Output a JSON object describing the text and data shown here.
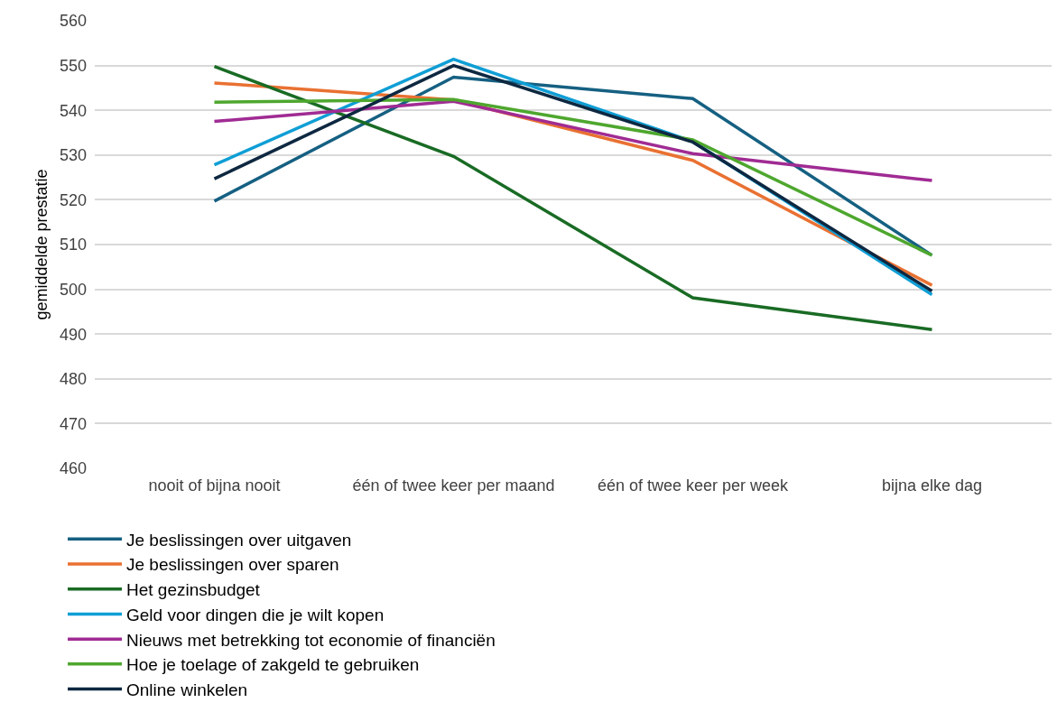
{
  "chart_data": {
    "type": "line",
    "ylabel": "gemiddelde prestatie",
    "categories": [
      "nooit of bijna nooit",
      "één of twee keer per maand",
      "één of twee keer per week",
      "bijna elke dag"
    ],
    "series": [
      {
        "name": "Je beslissingen over uitgaven",
        "color": "#156082",
        "values": [
          519.7,
          547.4,
          542.6,
          507.6
        ]
      },
      {
        "name": "Je beslissingen over sparen",
        "color": "#e97132",
        "values": [
          546.1,
          542.3,
          528.8,
          500.9
        ]
      },
      {
        "name": "Het gezinsbudget",
        "color": "#196b24",
        "values": [
          549.8,
          529.7,
          498.1,
          491.0
        ]
      },
      {
        "name": "Geld voor dingen die je wilt kopen",
        "color": "#0f9ed5",
        "values": [
          527.8,
          551.4,
          533.0,
          498.8
        ]
      },
      {
        "name": "Nieuws met betrekking tot economie of financiën",
        "color": "#a02b93",
        "values": [
          537.5,
          542.0,
          530.3,
          524.3
        ]
      },
      {
        "name": "Hoe je toelage of zakgeld te gebruiken",
        "color": "#4ea72e",
        "values": [
          541.8,
          542.4,
          533.4,
          507.6
        ]
      },
      {
        "name": "Online winkelen",
        "color": "#0e2841",
        "values": [
          524.7,
          550.0,
          532.9,
          499.6
        ]
      }
    ],
    "ylim": [
      460,
      560
    ],
    "yticks": [
      460,
      470,
      480,
      490,
      500,
      510,
      520,
      530,
      540,
      550,
      560
    ],
    "grid": "y",
    "legend": "bottom",
    "marker": "none",
    "line_style": "solid"
  }
}
